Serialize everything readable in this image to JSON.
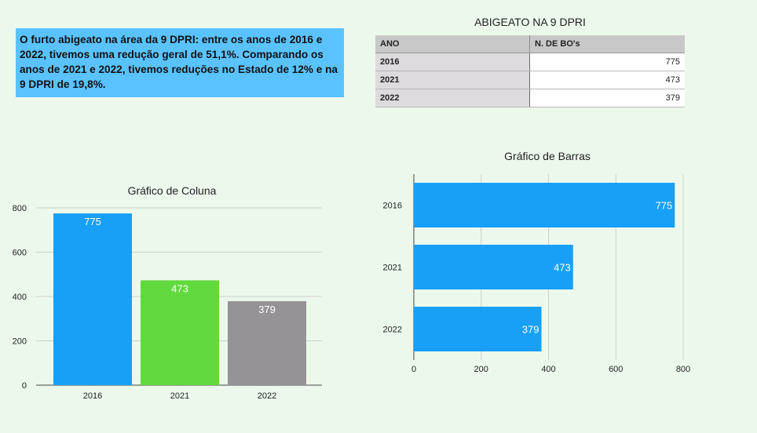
{
  "note": {
    "text": "O furto abigeato na área da 9 DPRI: entre os anos de 2016 e 2022, tivemos uma redução geral de 51,1%. Comparando os anos de 2021 e 2022, tivemos reduções no Estado de 12% e na 9 DPRI de 19,8%."
  },
  "table": {
    "title": "ABIGEATO NA 9 DPRI",
    "headers": [
      "ANO",
      "N. DE BO's"
    ],
    "rows": [
      {
        "year": "2016",
        "value": "775"
      },
      {
        "year": "2021",
        "value": "473"
      },
      {
        "year": "2022",
        "value": "379"
      }
    ]
  },
  "chart_data": [
    {
      "type": "bar",
      "orientation": "vertical",
      "title": "Gráfico de Coluna",
      "categories": [
        "2016",
        "2021",
        "2022"
      ],
      "values": [
        775,
        473,
        379
      ],
      "colors": [
        "#18a0f7",
        "#62d93e",
        "#959395"
      ],
      "ylim": [
        0,
        800
      ],
      "yticks": [
        0,
        200,
        400,
        600,
        800
      ],
      "grid": true
    },
    {
      "type": "bar",
      "orientation": "horizontal",
      "title": "Gráfico de Barras",
      "categories": [
        "2016",
        "2021",
        "2022"
      ],
      "values": [
        775,
        473,
        379
      ],
      "colors": [
        "#18a0f7",
        "#18a0f7",
        "#18a0f7"
      ],
      "xlim": [
        0,
        800
      ],
      "xticks": [
        0,
        200,
        400,
        600,
        800
      ],
      "grid": true
    }
  ]
}
